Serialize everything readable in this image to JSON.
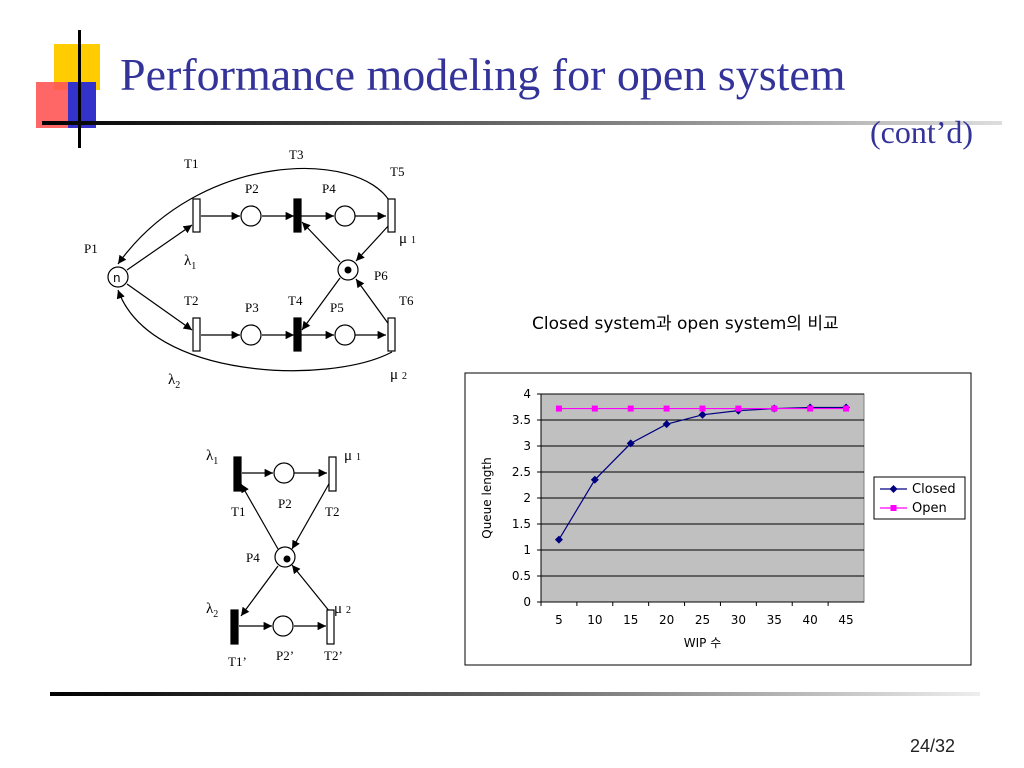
{
  "slide": {
    "title": "Performance modeling for open system",
    "subtitle": "(cont’d)",
    "page_number": "24/32",
    "accent_colors": {
      "title": "#333399",
      "deco_yellow": "#ffcc00",
      "deco_red": "#ff3333",
      "deco_blue": "#3333cc"
    }
  },
  "top_net": {
    "transitions": [
      "T1",
      "T2",
      "T3",
      "T4",
      "T5",
      "T6"
    ],
    "places": [
      "P1",
      "P2",
      "P3",
      "P4",
      "P5",
      "P6"
    ],
    "token_label": "n",
    "rate_lambda1": "λ",
    "rate_lambda1_sub": "1",
    "rate_lambda2": "λ",
    "rate_lambda2_sub": "2",
    "rate_mu1": "μ",
    "rate_mu1_sub": "1",
    "rate_mu2": "μ",
    "rate_mu2_sub": "2"
  },
  "bottom_net": {
    "transitions": [
      "T1",
      "T2",
      "T1’",
      "T2’"
    ],
    "places": [
      "P2",
      "P4",
      "P2’"
    ],
    "rate_lambda1": "λ",
    "rate_lambda1_sub": "1",
    "rate_lambda2": "λ",
    "rate_lambda2_sub": "2",
    "rate_mu1": "μ",
    "rate_mu1_sub": "1",
    "rate_mu2": "μ",
    "rate_mu2_sub": "2"
  },
  "chart_caption": "Closed system과 open system의 비교",
  "chart_data": {
    "type": "line",
    "xlabel": "WIP 수",
    "ylabel": "Queue length",
    "categories": [
      "5",
      "10",
      "15",
      "20",
      "25",
      "30",
      "35",
      "40",
      "45"
    ],
    "ylim": [
      0,
      4
    ],
    "yticks": [
      "0",
      "0.5",
      "1",
      "1.5",
      "2",
      "2.5",
      "3",
      "3.5",
      "4"
    ],
    "grid": true,
    "legend": "right",
    "series": [
      {
        "name": "Closed",
        "color": "#000080",
        "marker": "diamond",
        "values": [
          1.2,
          2.35,
          3.05,
          3.42,
          3.6,
          3.68,
          3.72,
          3.74,
          3.74
        ]
      },
      {
        "name": "Open",
        "color": "#ff00ff",
        "marker": "square",
        "values": [
          3.72,
          3.72,
          3.72,
          3.72,
          3.72,
          3.72,
          3.72,
          3.72,
          3.72
        ]
      }
    ]
  }
}
